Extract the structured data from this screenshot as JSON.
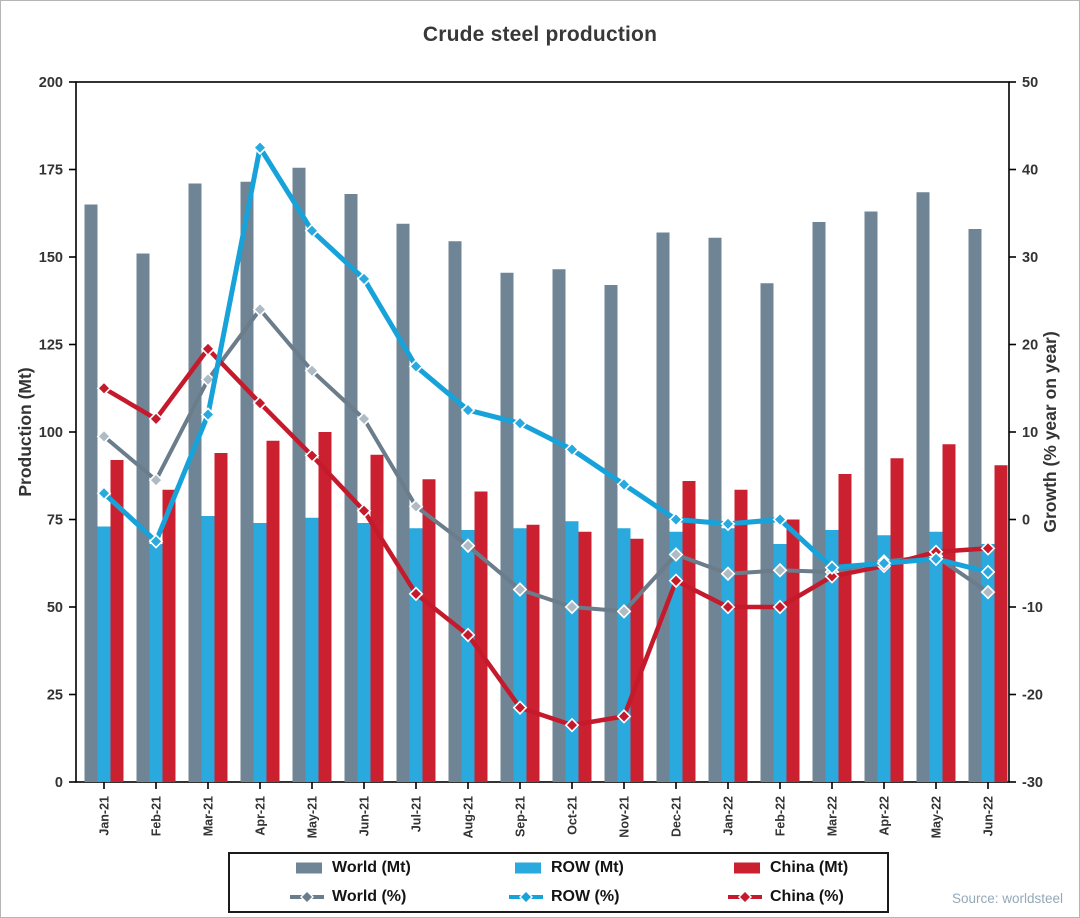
{
  "title": "Crude steel production",
  "source": "Source: worldsteel",
  "chart_data": {
    "type": "combo-bar-line",
    "title": "Crude steel production",
    "categories": [
      "Jan-21",
      "Feb-21",
      "Mar-21",
      "Apr-21",
      "May-21",
      "Jun-21",
      "Jul-21",
      "Aug-21",
      "Sep-21",
      "Oct-21",
      "Nov-21",
      "Dec-21",
      "Jan-22",
      "Feb-22",
      "Mar-22",
      "Apr-22",
      "May-22",
      "Jun-22"
    ],
    "axes": {
      "left": {
        "title": "Production (Mt)",
        "min": 0,
        "max": 200,
        "step": 25
      },
      "right": {
        "title": "Growth (% year on year)",
        "min": -30,
        "max": 50,
        "step": 10
      }
    },
    "grid": false,
    "legend_position": "bottom",
    "series": [
      {
        "name": "World (Mt)",
        "type": "bar",
        "axis": "left",
        "color": "#6f8494",
        "values": [
          165,
          151,
          171,
          171.5,
          175.5,
          168,
          159.5,
          154.5,
          145.5,
          146.5,
          142,
          157,
          155.5,
          142.5,
          160,
          163,
          168.5,
          158
        ]
      },
      {
        "name": "ROW (Mt)",
        "type": "bar",
        "axis": "left",
        "color": "#2aa9de",
        "values": [
          73,
          68,
          76,
          74,
          75.5,
          74,
          72.5,
          72,
          72.5,
          74.5,
          72.5,
          71.5,
          72.5,
          68,
          72,
          70.5,
          71.5,
          68
        ]
      },
      {
        "name": "China (Mt)",
        "type": "bar",
        "axis": "left",
        "color": "#cb2030",
        "values": [
          92,
          83.5,
          94,
          97.5,
          100,
          93.5,
          86.5,
          83,
          73.5,
          71.5,
          69.5,
          86,
          83.5,
          75,
          88,
          92.5,
          96.5,
          90.5
        ]
      },
      {
        "name": "World (%)",
        "type": "line",
        "axis": "right",
        "color": "#6b7c8a",
        "marker_fill": "#aebbc5",
        "values": [
          9.5,
          4.5,
          16,
          24,
          17,
          11.5,
          1.5,
          -3,
          -8,
          -10,
          -10.5,
          -4,
          -6.2,
          -5.8,
          -6,
          -4.8,
          -4.2,
          -8.3
        ]
      },
      {
        "name": "China (%)",
        "type": "line",
        "axis": "right",
        "color": "#c51a2b",
        "marker_fill": "#c51a2b",
        "values": [
          15,
          11.5,
          19.5,
          13.3,
          7.3,
          1,
          -8.5,
          -13.2,
          -21.5,
          -23.5,
          -22.5,
          -7,
          -10,
          -10,
          -6.5,
          -5.3,
          -3.7,
          -3.3
        ]
      },
      {
        "name": "ROW (%)",
        "type": "line",
        "axis": "right",
        "color": "#18a2da",
        "marker_fill": "#2aa9de",
        "values": [
          3,
          -2.5,
          12,
          42.5,
          33,
          27.5,
          17.5,
          12.5,
          11,
          8,
          4,
          0,
          -0.5,
          0,
          -5.5,
          -5,
          -4.5,
          -6
        ]
      }
    ],
    "legend_order": [
      "World (Mt)",
      "ROW (Mt)",
      "China (Mt)",
      "World (%)",
      "ROW (%)",
      "China (%)"
    ]
  }
}
